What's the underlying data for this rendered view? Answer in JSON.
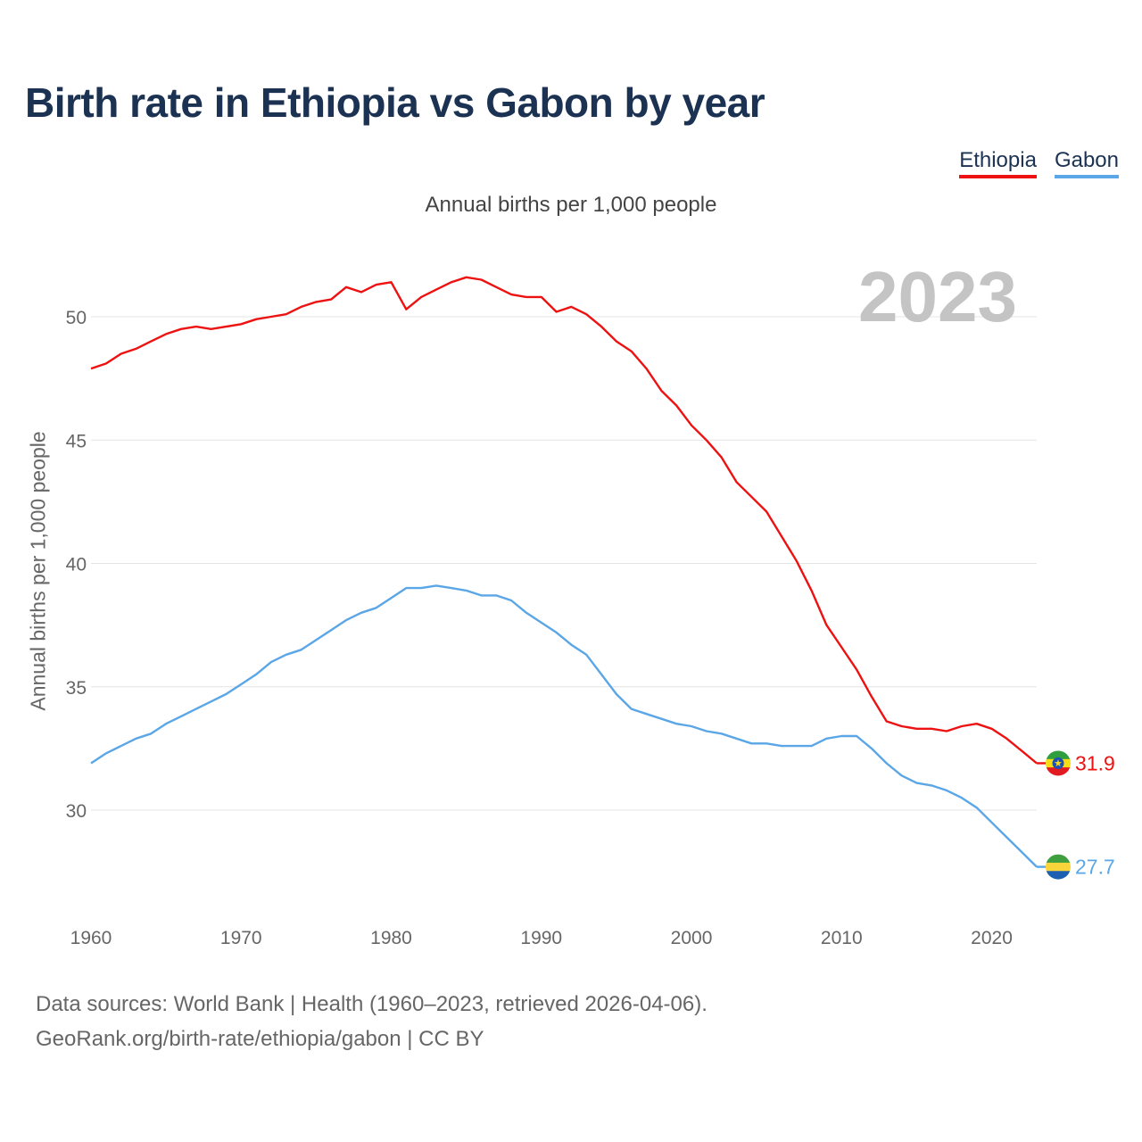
{
  "title": "Birth rate in Ethiopia vs Gabon by year",
  "legend": {
    "ethiopia": "Ethiopia",
    "gabon": "Gabon"
  },
  "source": {
    "line1": "Data sources: World Bank | Health (1960–2023, retrieved 2026-04-06).",
    "line2": "GeoRank.org/birth-rate/ethiopia/gabon | CC BY"
  },
  "colors": {
    "ethiopia": "#ee1111",
    "gabon": "#5aa6e6",
    "grid": "#e4e4e4"
  },
  "chart_data": {
    "type": "line",
    "title": "Birth rate in Ethiopia vs Gabon by year",
    "subtitle": "Annual births per 1,000 people",
    "ylabel": "Annual births per 1,000 people",
    "xlabel": "",
    "current_year": "2023",
    "xlim": [
      1960,
      2023
    ],
    "ylim": [
      27,
      52.5
    ],
    "xticks": [
      1960,
      1970,
      1980,
      1990,
      2000,
      2010,
      2020
    ],
    "yticks": [
      30,
      35,
      40,
      45,
      50
    ],
    "grid": true,
    "legend_position": "top-right",
    "x": [
      1960,
      1961,
      1962,
      1963,
      1964,
      1965,
      1966,
      1967,
      1968,
      1969,
      1970,
      1971,
      1972,
      1973,
      1974,
      1975,
      1976,
      1977,
      1978,
      1979,
      1980,
      1981,
      1982,
      1983,
      1984,
      1985,
      1986,
      1987,
      1988,
      1989,
      1990,
      1991,
      1992,
      1993,
      1994,
      1995,
      1996,
      1997,
      1998,
      1999,
      2000,
      2001,
      2002,
      2003,
      2004,
      2005,
      2006,
      2007,
      2008,
      2009,
      2010,
      2011,
      2012,
      2013,
      2014,
      2015,
      2016,
      2017,
      2018,
      2019,
      2020,
      2021,
      2022,
      2023
    ],
    "series": [
      {
        "name": "Ethiopia",
        "end_label": "31.9",
        "values": [
          47.9,
          48.1,
          48.5,
          48.7,
          49.0,
          49.3,
          49.5,
          49.6,
          49.5,
          49.6,
          49.7,
          49.9,
          50.0,
          50.1,
          50.4,
          50.6,
          50.7,
          51.2,
          51.0,
          51.3,
          51.4,
          50.3,
          50.8,
          51.1,
          51.4,
          51.6,
          51.5,
          51.2,
          50.9,
          50.8,
          50.8,
          50.2,
          50.4,
          50.1,
          49.6,
          49.0,
          48.6,
          47.9,
          47.0,
          46.4,
          45.6,
          45.0,
          44.3,
          43.3,
          42.7,
          42.1,
          41.1,
          40.1,
          38.9,
          37.5,
          36.6,
          35.7,
          34.6,
          33.6,
          33.4,
          33.3,
          33.3,
          33.2,
          33.4,
          33.5,
          33.3,
          32.9,
          32.4,
          31.9
        ]
      },
      {
        "name": "Gabon",
        "end_label": "27.7",
        "values": [
          31.9,
          32.3,
          32.6,
          32.9,
          33.1,
          33.5,
          33.8,
          34.1,
          34.4,
          34.7,
          35.1,
          35.5,
          36.0,
          36.3,
          36.5,
          36.9,
          37.3,
          37.7,
          38.0,
          38.2,
          38.6,
          39.0,
          39.0,
          39.1,
          39.0,
          38.9,
          38.7,
          38.7,
          38.5,
          38.0,
          37.6,
          37.2,
          36.7,
          36.3,
          35.5,
          34.7,
          34.1,
          33.9,
          33.7,
          33.5,
          33.4,
          33.2,
          33.1,
          32.9,
          32.7,
          32.7,
          32.6,
          32.6,
          32.6,
          32.9,
          33.0,
          33.0,
          32.5,
          31.9,
          31.4,
          31.1,
          31.0,
          30.8,
          30.5,
          30.1,
          29.5,
          28.9,
          28.3,
          27.7
        ]
      }
    ]
  }
}
